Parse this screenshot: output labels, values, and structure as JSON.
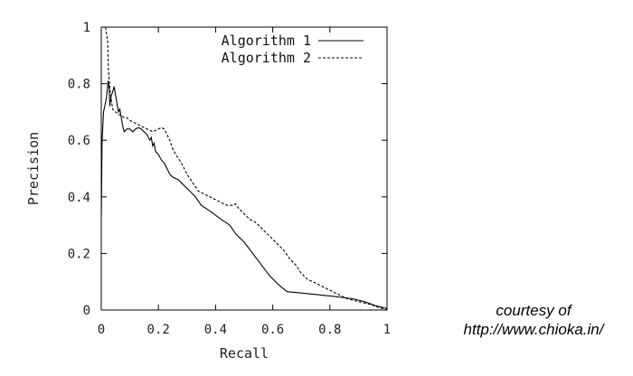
{
  "chart_data": {
    "type": "line",
    "xlabel": "Recall",
    "ylabel": "Precision",
    "xlim": [
      0,
      1
    ],
    "ylim": [
      0,
      1
    ],
    "xticks": [
      0,
      0.2,
      0.4,
      0.6,
      0.8,
      1
    ],
    "xtick_labels": [
      "0",
      "0.2",
      "0.4",
      "0.6",
      "0.8",
      "1"
    ],
    "yticks": [
      0,
      0.2,
      0.4,
      0.6,
      0.8,
      1
    ],
    "ytick_labels": [
      "0",
      "0.2",
      "0.4",
      "0.6",
      "0.8",
      "1"
    ],
    "grid": false,
    "legend_position": "top-right",
    "series": [
      {
        "name": "Algorithm 1",
        "style": "solid",
        "color": "#000000",
        "points": [
          [
            0,
            0.33
          ],
          [
            0.003,
            0.6
          ],
          [
            0.008,
            0.7
          ],
          [
            0.018,
            0.75
          ],
          [
            0.024,
            0.81
          ],
          [
            0.028,
            0.78
          ],
          [
            0.03,
            0.72
          ],
          [
            0.035,
            0.76
          ],
          [
            0.04,
            0.77
          ],
          [
            0.045,
            0.79
          ],
          [
            0.05,
            0.76
          ],
          [
            0.055,
            0.73
          ],
          [
            0.06,
            0.7
          ],
          [
            0.065,
            0.71
          ],
          [
            0.07,
            0.68
          ],
          [
            0.075,
            0.65
          ],
          [
            0.08,
            0.63
          ],
          [
            0.09,
            0.64
          ],
          [
            0.1,
            0.64
          ],
          [
            0.11,
            0.63
          ],
          [
            0.12,
            0.64
          ],
          [
            0.13,
            0.645
          ],
          [
            0.14,
            0.64
          ],
          [
            0.15,
            0.63
          ],
          [
            0.16,
            0.62
          ],
          [
            0.17,
            0.6
          ],
          [
            0.175,
            0.61
          ],
          [
            0.18,
            0.58
          ],
          [
            0.185,
            0.59
          ],
          [
            0.19,
            0.56
          ],
          [
            0.2,
            0.55
          ],
          [
            0.21,
            0.53
          ],
          [
            0.22,
            0.52
          ],
          [
            0.23,
            0.5
          ],
          [
            0.24,
            0.48
          ],
          [
            0.25,
            0.47
          ],
          [
            0.27,
            0.46
          ],
          [
            0.29,
            0.44
          ],
          [
            0.31,
            0.42
          ],
          [
            0.33,
            0.4
          ],
          [
            0.35,
            0.37
          ],
          [
            0.38,
            0.35
          ],
          [
            0.42,
            0.32
          ],
          [
            0.45,
            0.3
          ],
          [
            0.47,
            0.27
          ],
          [
            0.5,
            0.24
          ],
          [
            0.53,
            0.2
          ],
          [
            0.56,
            0.16
          ],
          [
            0.59,
            0.12
          ],
          [
            0.62,
            0.09
          ],
          [
            0.65,
            0.065
          ],
          [
            0.7,
            0.06
          ],
          [
            0.8,
            0.05
          ],
          [
            0.88,
            0.04
          ],
          [
            0.92,
            0.03
          ],
          [
            0.96,
            0.015
          ],
          [
            1,
            0.005
          ]
        ]
      },
      {
        "name": "Algorithm 2",
        "style": "dashed",
        "color": "#000000",
        "points": [
          [
            0.015,
            1.0
          ],
          [
            0.022,
            0.95
          ],
          [
            0.025,
            0.85
          ],
          [
            0.03,
            0.78
          ],
          [
            0.04,
            0.71
          ],
          [
            0.05,
            0.7
          ],
          [
            0.06,
            0.69
          ],
          [
            0.07,
            0.69
          ],
          [
            0.08,
            0.68
          ],
          [
            0.09,
            0.68
          ],
          [
            0.1,
            0.67
          ],
          [
            0.12,
            0.66
          ],
          [
            0.14,
            0.65
          ],
          [
            0.16,
            0.64
          ],
          [
            0.18,
            0.63
          ],
          [
            0.2,
            0.64
          ],
          [
            0.21,
            0.645
          ],
          [
            0.22,
            0.64
          ],
          [
            0.23,
            0.62
          ],
          [
            0.24,
            0.6
          ],
          [
            0.25,
            0.57
          ],
          [
            0.26,
            0.55
          ],
          [
            0.28,
            0.52
          ],
          [
            0.3,
            0.48
          ],
          [
            0.32,
            0.45
          ],
          [
            0.34,
            0.42
          ],
          [
            0.36,
            0.41
          ],
          [
            0.38,
            0.4
          ],
          [
            0.4,
            0.39
          ],
          [
            0.42,
            0.38
          ],
          [
            0.44,
            0.37
          ],
          [
            0.46,
            0.37
          ],
          [
            0.47,
            0.375
          ],
          [
            0.48,
            0.36
          ],
          [
            0.5,
            0.34
          ],
          [
            0.52,
            0.32
          ],
          [
            0.54,
            0.31
          ],
          [
            0.56,
            0.29
          ],
          [
            0.58,
            0.27
          ],
          [
            0.6,
            0.25
          ],
          [
            0.62,
            0.23
          ],
          [
            0.64,
            0.21
          ],
          [
            0.66,
            0.18
          ],
          [
            0.68,
            0.16
          ],
          [
            0.7,
            0.13
          ],
          [
            0.72,
            0.11
          ],
          [
            0.74,
            0.1
          ],
          [
            0.76,
            0.09
          ],
          [
            0.78,
            0.08
          ],
          [
            0.8,
            0.07
          ],
          [
            0.82,
            0.06
          ],
          [
            0.84,
            0.05
          ],
          [
            0.86,
            0.04
          ],
          [
            0.9,
            0.03
          ],
          [
            0.94,
            0.02
          ],
          [
            0.97,
            0.01
          ],
          [
            1,
            0.0
          ]
        ]
      }
    ]
  },
  "credit": {
    "line1": "courtesy of",
    "line2": "http://www.chioka.in/"
  }
}
